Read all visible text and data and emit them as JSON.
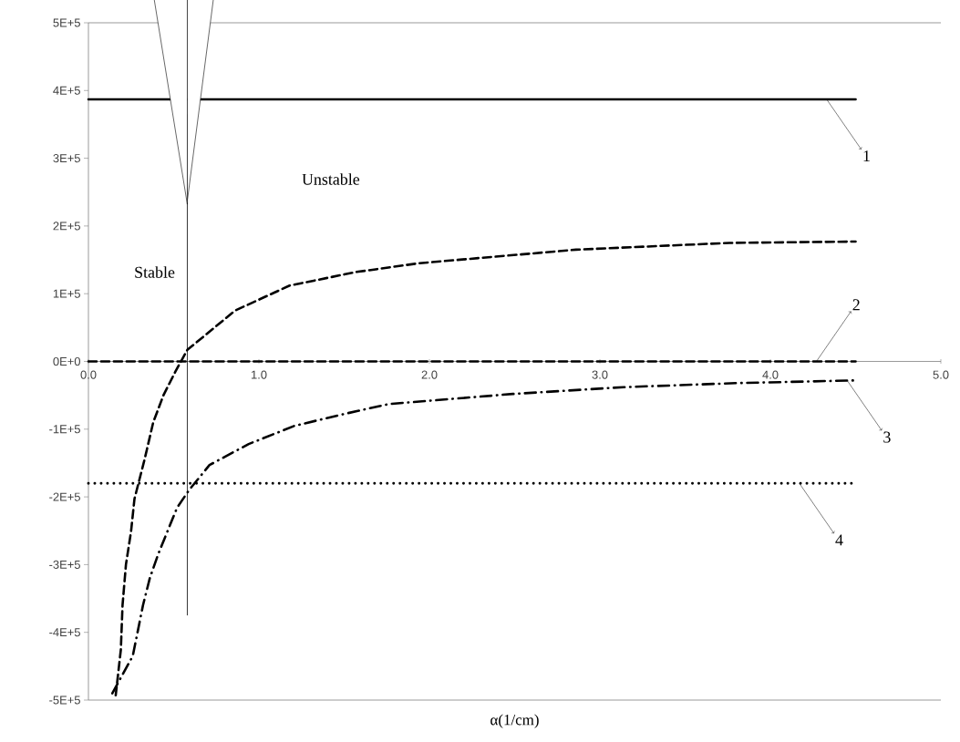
{
  "chart_data": {
    "type": "line",
    "xlabel": "α(1/cm)",
    "xlim": [
      0,
      5
    ],
    "ylim": [
      -500000,
      500000
    ],
    "xticks": [
      {
        "value": 0,
        "label": "0.0"
      },
      {
        "value": 1,
        "label": "1.0"
      },
      {
        "value": 2,
        "label": "2.0"
      },
      {
        "value": 3,
        "label": "3.0"
      },
      {
        "value": 4,
        "label": "4.0"
      },
      {
        "value": 5,
        "label": "5.0"
      }
    ],
    "yticks": [
      {
        "value": -500000,
        "label": "-5E+5"
      },
      {
        "value": -400000,
        "label": "-4E+5"
      },
      {
        "value": -300000,
        "label": "-3E+5"
      },
      {
        "value": -200000,
        "label": "-2E+5"
      },
      {
        "value": -100000,
        "label": "-1E+5"
      },
      {
        "value": 0,
        "label": "0E+0"
      },
      {
        "value": 100000,
        "label": "1E+5"
      },
      {
        "value": 200000,
        "label": "2E+5"
      },
      {
        "value": 300000,
        "label": "3E+5"
      },
      {
        "value": 400000,
        "label": "4E+5"
      },
      {
        "value": 500000,
        "label": "5E+5"
      }
    ],
    "grid": false,
    "legend": false,
    "marker": "none",
    "series": [
      {
        "color": "#000000",
        "line_style": "solid",
        "x": [
          0,
          4.5
        ],
        "values": [
          387000,
          387000
        ]
      },
      {
        "color": "#000000",
        "line_style": "dashed",
        "x": [
          0.16,
          0.19,
          0.2,
          0.22,
          0.25,
          0.27,
          0.33,
          0.38,
          0.44,
          0.51,
          0.58,
          0.86,
          1.18,
          1.57,
          1.94,
          2.86,
          3.76,
          4.5
        ],
        "values": [
          -493000,
          -426000,
          -360000,
          -300000,
          -251000,
          -203000,
          -144000,
          -90000,
          -50000,
          -15000,
          17000,
          75000,
          112000,
          132000,
          145000,
          165000,
          175000,
          177000
        ]
      },
      {
        "color": "#000000",
        "line_style": "dashed",
        "x": [
          0,
          4.5
        ],
        "values": [
          0,
          0
        ]
      },
      {
        "color": "#000000",
        "line_style": "dashdot",
        "x": [
          0.14,
          0.26,
          0.32,
          0.36,
          0.41,
          0.52,
          0.59,
          0.71,
          0.94,
          1.21,
          1.51,
          1.76,
          2.49,
          3.14,
          3.8,
          4.5
        ],
        "values": [
          -490000,
          -435000,
          -360000,
          -320000,
          -284000,
          -216000,
          -190000,
          -153000,
          -122000,
          -95000,
          -77000,
          -63000,
          -48000,
          -38000,
          -32000,
          -28000
        ]
      },
      {
        "color": "#000000",
        "line_style": "dotted",
        "x": [
          0,
          4.5
        ],
        "values": [
          -180000,
          -180000
        ]
      }
    ],
    "ref_lines": [
      {
        "axis": "x",
        "value": 0.58,
        "color": "#000000"
      }
    ],
    "annotations": [
      {
        "text": "1",
        "x": 4.33,
        "y": 387000
      },
      {
        "text": "2",
        "x": 4.27,
        "y": 0
      },
      {
        "text": "3",
        "x": 4.45,
        "y": -28000
      },
      {
        "text": "4",
        "x": 4.17,
        "y": -180000
      },
      "Unstable",
      "Stable"
    ]
  }
}
